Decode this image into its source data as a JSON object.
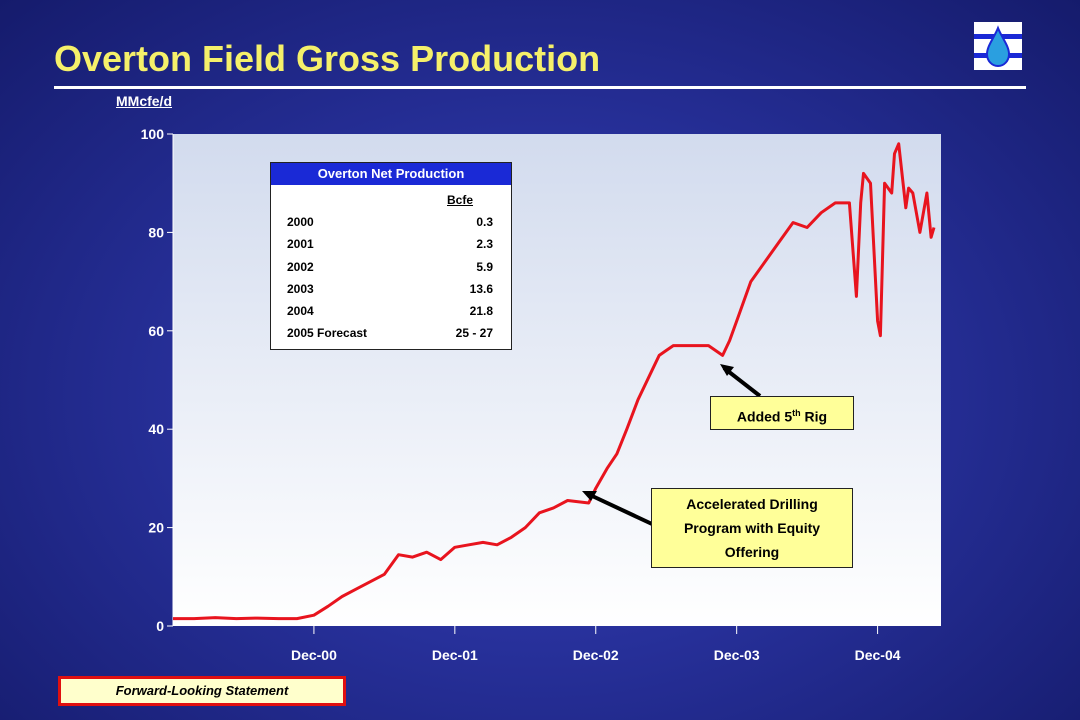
{
  "page": {
    "title": "Overton Field Gross Production",
    "logo_icon": "company-water-drop-icon",
    "footer_note": "Forward-Looking Statement"
  },
  "colors": {
    "background": "#27309a",
    "title": "#f5f06a",
    "plot_background_top": "#d2dbee",
    "plot_background_bottom": "#ffffff",
    "series_line": "#e8141e",
    "inset_header": "#1a29d6",
    "callout_fill": "#ffff99",
    "footer_border": "#e01010"
  },
  "inset_table": {
    "header": "Overton Net Production",
    "unit": "Bcfe",
    "rows": [
      {
        "year": "2000",
        "value": "0.3"
      },
      {
        "year": "2001",
        "value": "2.3"
      },
      {
        "year": "2002",
        "value": "5.9"
      },
      {
        "year": "2003",
        "value": "13.6"
      },
      {
        "year": "2004",
        "value": "21.8"
      },
      {
        "year": "2005 Forecast",
        "value": "25 - 27"
      }
    ]
  },
  "callouts": {
    "rig": {
      "text": "Added 5",
      "sup": "th",
      "text_after": " Rig"
    },
    "drilling": {
      "line1": "Accelerated Drilling",
      "line2": "Program with Equity",
      "line3": "Offering"
    }
  },
  "chart_data": {
    "type": "line",
    "title": "Overton Field Gross Production",
    "ylabel": "MMcfe/d",
    "xlabel": "",
    "ylim": [
      0,
      100
    ],
    "yticks": [
      0,
      20,
      40,
      60,
      80,
      100
    ],
    "xlim": [
      -1.0,
      4.45
    ],
    "xticks": [
      {
        "value": 0,
        "label": "Dec-00"
      },
      {
        "value": 1,
        "label": "Dec-01"
      },
      {
        "value": 2,
        "label": "Dec-02"
      },
      {
        "value": 3,
        "label": "Dec-03"
      },
      {
        "value": 4,
        "label": "Dec-04"
      }
    ],
    "legend": "none",
    "grid": false,
    "series": [
      {
        "x": [
          -1.0,
          -0.85,
          -0.7,
          -0.55,
          -0.4,
          -0.25,
          -0.12,
          0.0,
          0.1,
          0.2,
          0.3,
          0.4,
          0.5,
          0.6,
          0.7,
          0.8,
          0.9,
          1.0,
          1.1,
          1.2,
          1.3,
          1.4,
          1.5,
          1.6,
          1.7,
          1.8,
          1.95,
          2.0,
          2.08,
          2.15,
          2.22,
          2.3,
          2.4,
          2.45,
          2.5,
          2.55,
          2.6,
          2.7,
          2.8,
          2.9,
          2.95,
          3.0,
          3.1,
          3.2,
          3.3,
          3.4,
          3.5,
          3.6,
          3.7,
          3.8,
          3.85,
          3.88,
          3.9,
          3.95,
          4.0,
          4.02,
          4.05,
          4.1,
          4.12,
          4.15,
          4.2,
          4.22,
          4.25,
          4.3,
          4.35,
          4.38,
          4.4
        ],
        "y": [
          1.5,
          1.5,
          1.7,
          1.5,
          1.6,
          1.5,
          1.5,
          2.2,
          4.0,
          6.0,
          7.5,
          9.0,
          10.5,
          14.5,
          14.0,
          15.0,
          13.5,
          16.0,
          16.5,
          17.0,
          16.5,
          18.0,
          20.0,
          23.0,
          24.0,
          25.5,
          25.0,
          28.0,
          32.0,
          35.0,
          40.0,
          46.0,
          52.0,
          55.0,
          56.0,
          57.0,
          57.0,
          57.0,
          57.0,
          55.0,
          58.0,
          62.0,
          70.0,
          74.0,
          78.0,
          82.0,
          81.0,
          84.0,
          86.0,
          86.0,
          67.0,
          86.0,
          92.0,
          90.0,
          62.0,
          59.0,
          90.0,
          88.0,
          96.0,
          98.0,
          85.0,
          89.0,
          88.0,
          80.0,
          88.0,
          79.0,
          81.0
        ]
      }
    ]
  }
}
